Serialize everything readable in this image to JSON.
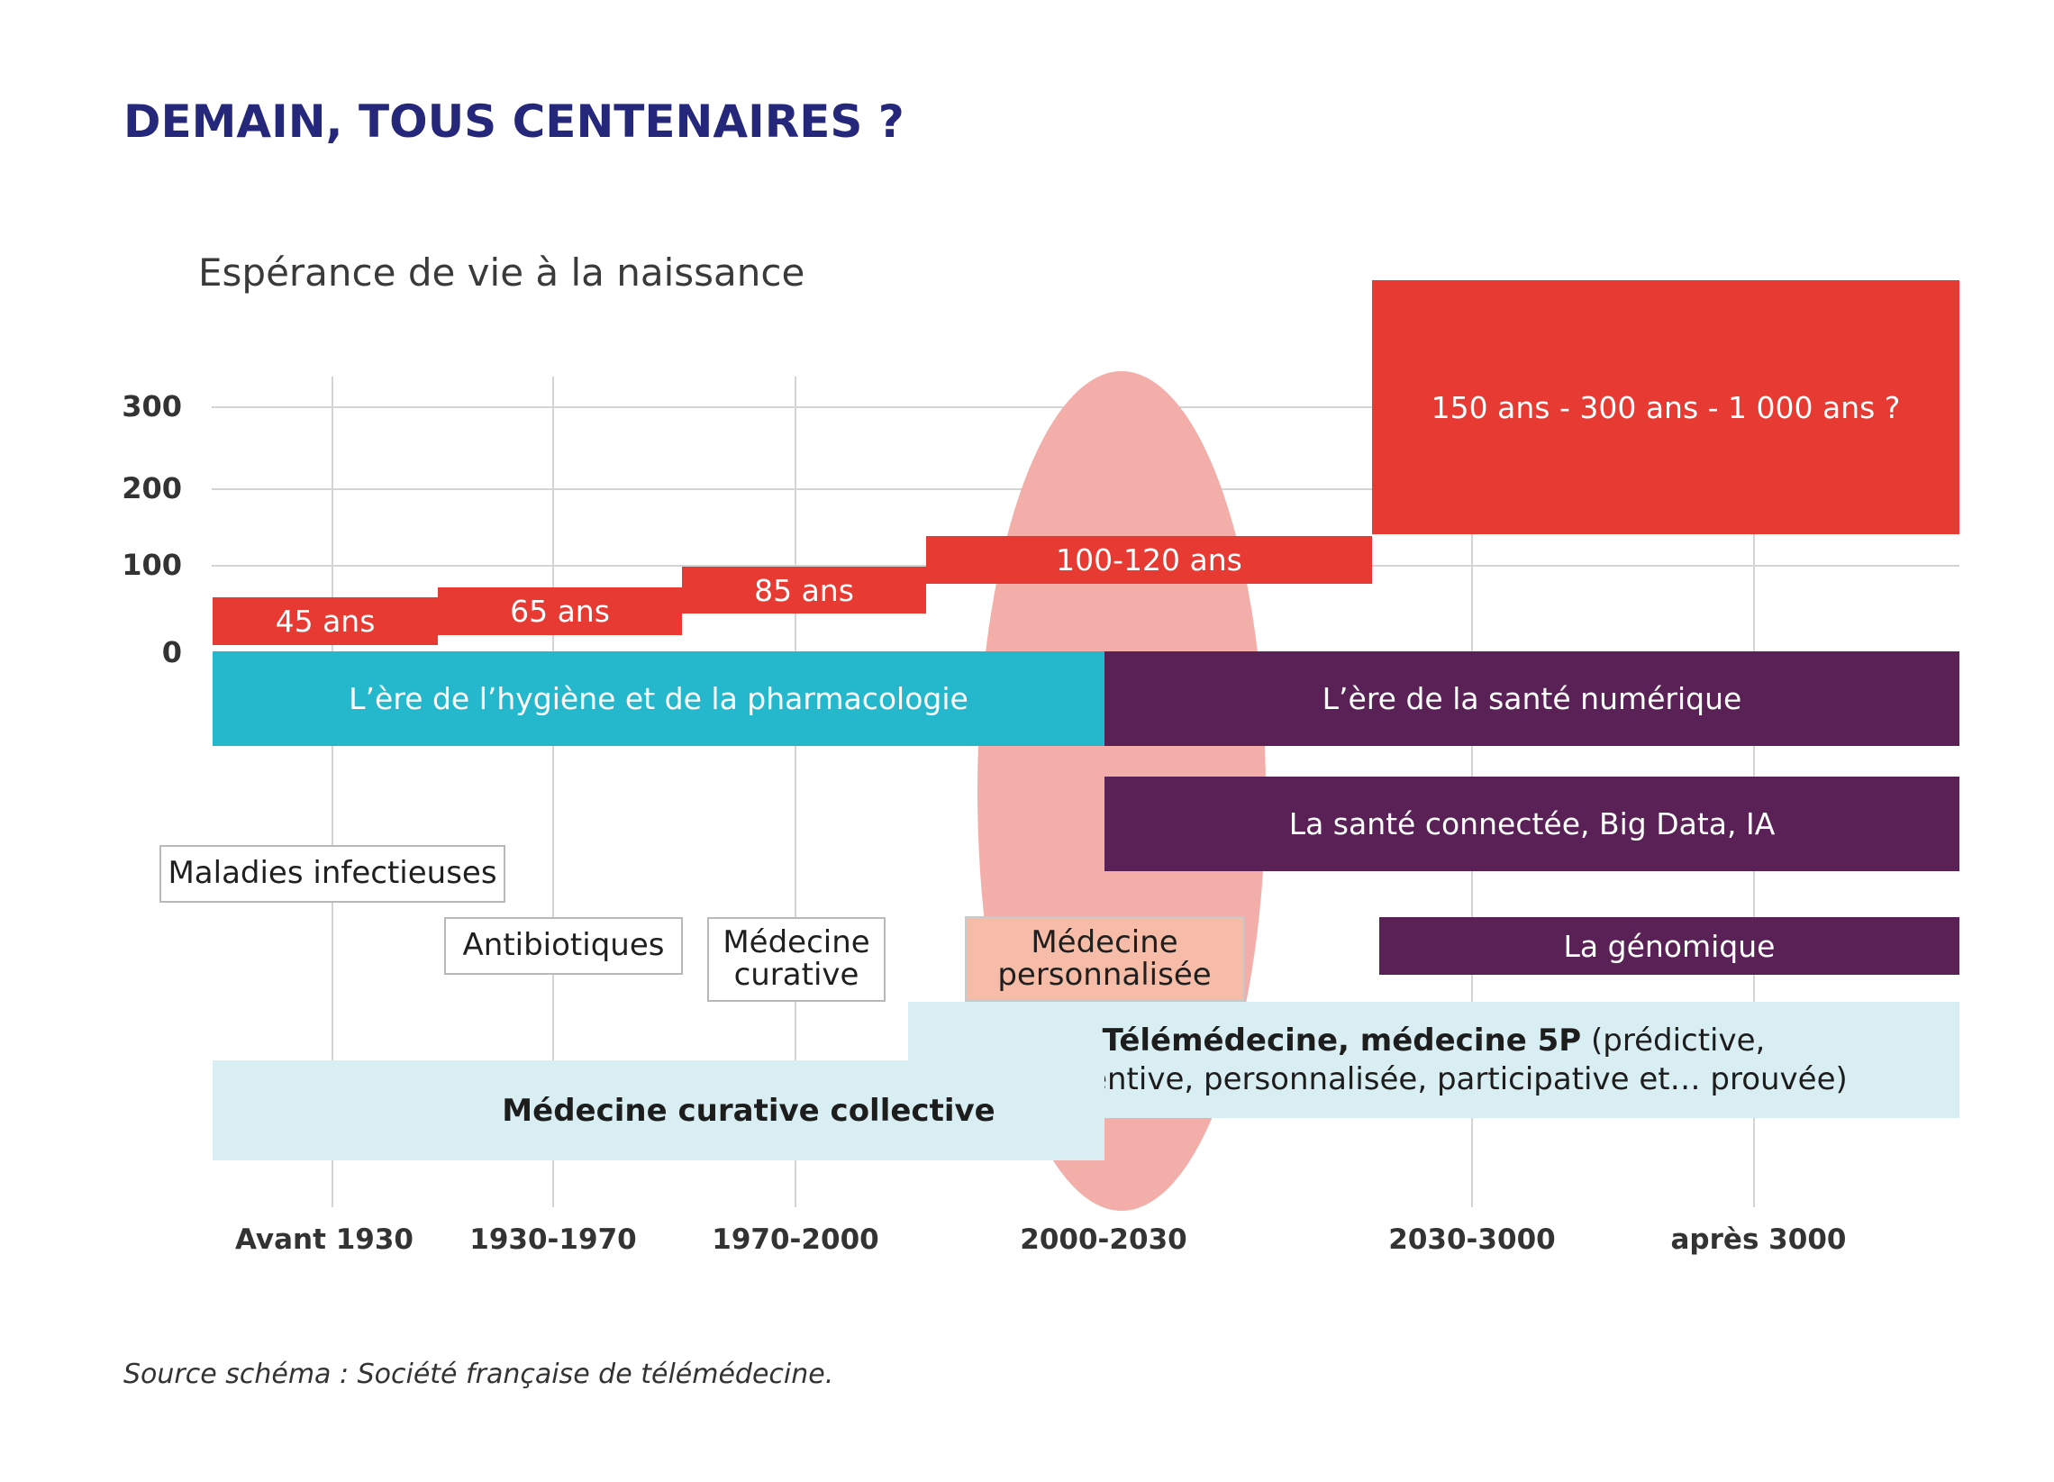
{
  "title": "DEMAIN, TOUS CENTENAIRES ?",
  "subtitle": "Espérance de vie à la naissance",
  "colors": {
    "title": "#25287a",
    "red": "#e63a33",
    "teal": "#25b8cd",
    "purple": "#5a2156",
    "pale_blue": "#d9eef3",
    "ellipse": "#f4aeaa"
  },
  "y_axis": {
    "ticks": [
      "300",
      "200",
      "100",
      "0"
    ]
  },
  "x_axis": {
    "ticks": [
      "Avant 1930",
      "1930-1970",
      "1970-2000",
      "2000-2030",
      "2030-3000",
      "après 3000"
    ]
  },
  "life_expectancy": [
    {
      "period": "Avant 1930",
      "label": "45 ans"
    },
    {
      "period": "1930-1970",
      "label": "65 ans"
    },
    {
      "period": "1970-2000",
      "label": "85 ans"
    },
    {
      "period": "2000-2030",
      "label": "100-120 ans"
    },
    {
      "period": "après 2030",
      "label": "150 ans - 300 ans - 1 000 ans ?"
    }
  ],
  "eras": {
    "hygiene": "L’ère de l’hygiène et de la pharmacologie",
    "numerique": "L’ère de la santé numérique",
    "connectee": "La santé connectée, Big Data, IA",
    "genomique": "La génomique"
  },
  "topics": {
    "maladies": "Maladies infectieuses",
    "antibiotiques": "Antibiotiques",
    "medecine_curative_1": "Médecine",
    "medecine_curative_2": "curative",
    "medecine_perso_1": "Médecine",
    "medecine_perso_2": "personnalisée"
  },
  "bands": {
    "collective": "Médecine curative collective",
    "telemedecine_bold": "Télémédecine, médecine 5P",
    "telemedecine_line1": " (prédictive,",
    "telemedecine_line2": "préventive, personnalisée, participative et… prouvée)"
  },
  "source": "Source schéma : Société française de télémédecine."
}
